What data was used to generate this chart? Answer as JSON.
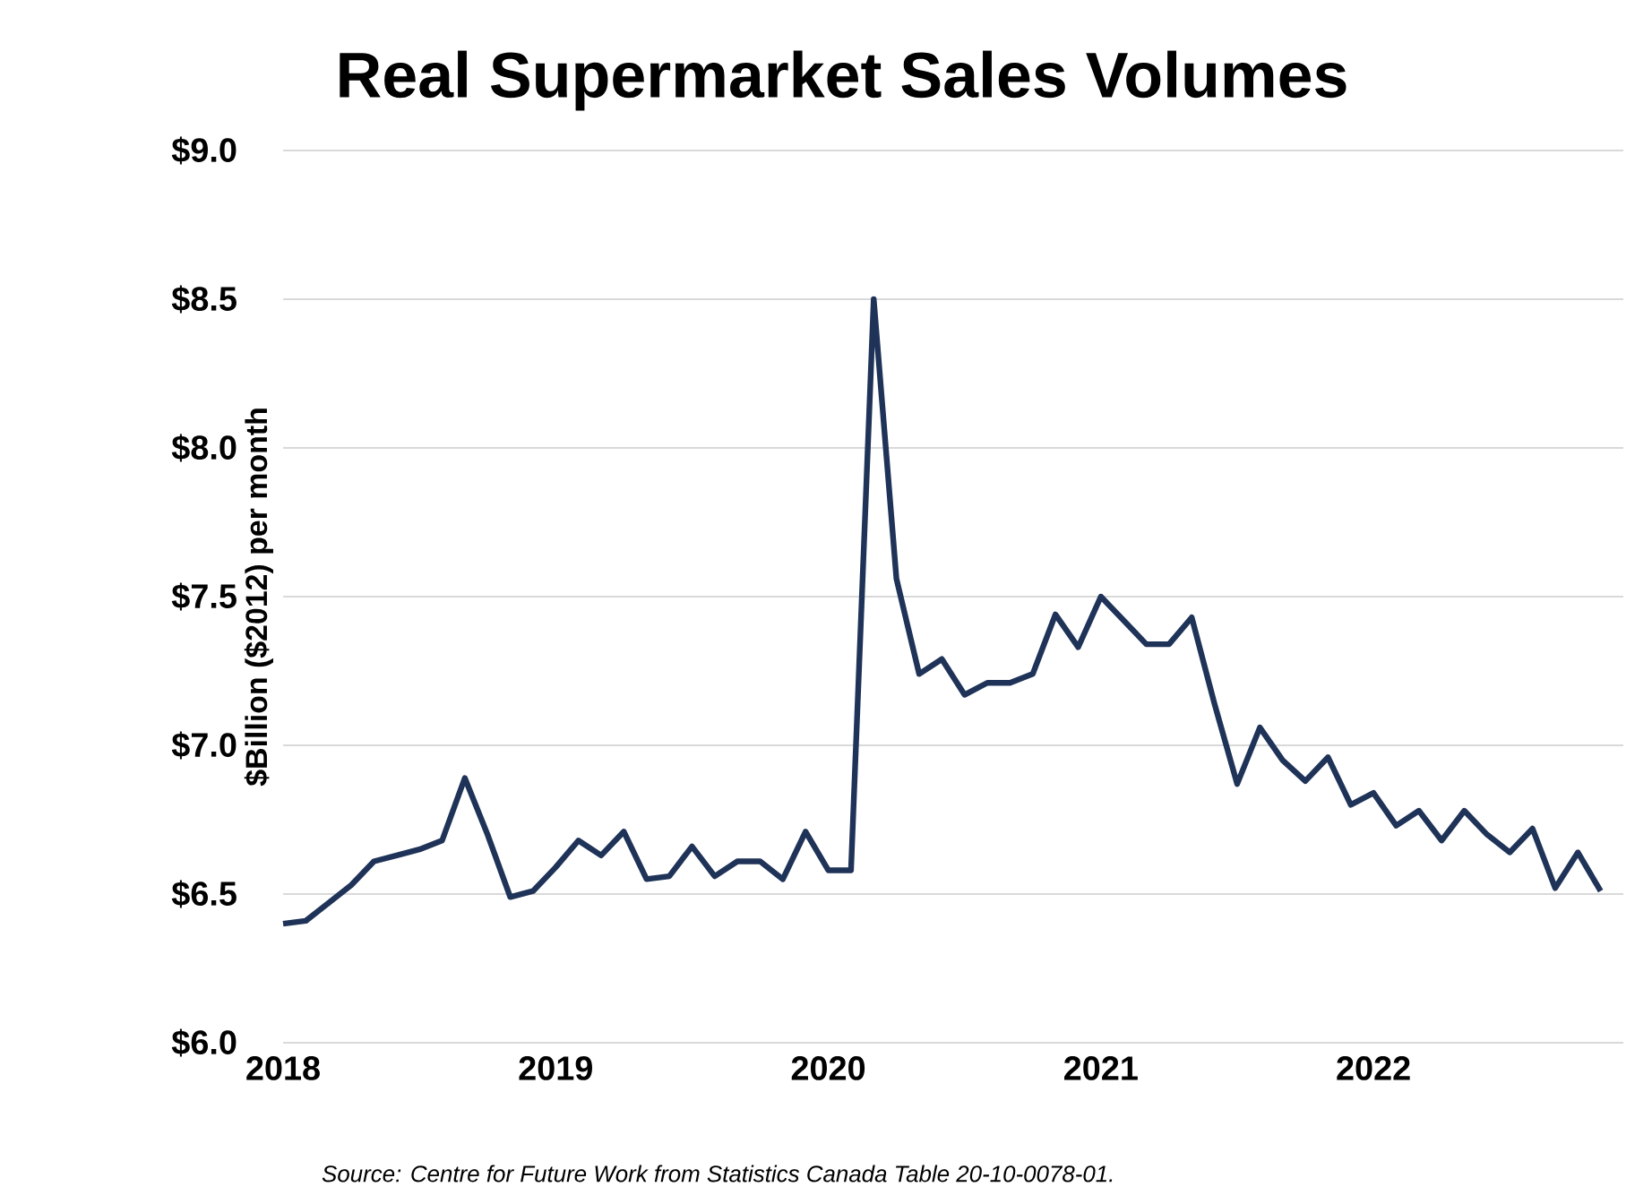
{
  "chart_data": {
    "type": "line",
    "title": "Real Supermarket Sales Volumes",
    "ylabel": "$Billion ($2012) per month",
    "annotations": [
      "Source: Centre for Future Work from Statistics Canada Table 20-10-0078-01."
    ],
    "x": [
      "2018-01",
      "2018-02",
      "2018-03",
      "2018-04",
      "2018-05",
      "2018-06",
      "2018-07",
      "2018-08",
      "2018-09",
      "2018-10",
      "2018-11",
      "2018-12",
      "2019-01",
      "2019-02",
      "2019-03",
      "2019-04",
      "2019-05",
      "2019-06",
      "2019-07",
      "2019-08",
      "2019-09",
      "2019-10",
      "2019-11",
      "2019-12",
      "2020-01",
      "2020-02",
      "2020-03",
      "2020-04",
      "2020-05",
      "2020-06",
      "2020-07",
      "2020-08",
      "2020-09",
      "2020-10",
      "2020-11",
      "2020-12",
      "2021-01",
      "2021-02",
      "2021-03",
      "2021-04",
      "2021-05",
      "2021-06",
      "2021-07",
      "2021-08",
      "2021-09",
      "2021-10",
      "2021-11",
      "2021-12",
      "2022-01",
      "2022-02",
      "2022-03",
      "2022-04",
      "2022-05",
      "2022-06",
      "2022-07",
      "2022-08",
      "2022-09",
      "2022-10",
      "2022-11"
    ],
    "series": [
      {
        "color": "#1f3358",
        "values": [
          6.4,
          6.41,
          6.47,
          6.53,
          6.61,
          6.63,
          6.65,
          6.68,
          6.89,
          6.7,
          6.49,
          6.51,
          6.59,
          6.68,
          6.63,
          6.71,
          6.55,
          6.56,
          6.66,
          6.56,
          6.61,
          6.61,
          6.55,
          6.71,
          6.58,
          6.58,
          8.5,
          7.56,
          7.24,
          7.29,
          7.17,
          7.21,
          7.21,
          7.24,
          7.44,
          7.33,
          7.5,
          7.42,
          7.34,
          7.34,
          7.43,
          7.14,
          6.87,
          7.06,
          6.95,
          6.88,
          6.96,
          6.8,
          6.84,
          6.73,
          6.78,
          6.68,
          6.78,
          6.7,
          6.64,
          6.72,
          6.52,
          6.64,
          6.51
        ]
      }
    ],
    "xlim": [
      "2018-01",
      "2022-12"
    ],
    "xticks": [
      {
        "value": "2018-01",
        "label": "2018"
      },
      {
        "value": "2019-01",
        "label": "2019"
      },
      {
        "value": "2020-01",
        "label": "2020"
      },
      {
        "value": "2021-01",
        "label": "2021"
      },
      {
        "value": "2022-01",
        "label": "2022"
      }
    ],
    "ylim": [
      6.0,
      9.0
    ],
    "yticks": [
      {
        "value": 6.0,
        "label": "$6.0"
      },
      {
        "value": 6.5,
        "label": "$6.5"
      },
      {
        "value": 7.0,
        "label": "$7.0"
      },
      {
        "value": 7.5,
        "label": "$7.5"
      },
      {
        "value": 8.0,
        "label": "$8.0"
      },
      {
        "value": 8.5,
        "label": "$8.5"
      },
      {
        "value": 9.0,
        "label": "$9.0"
      }
    ],
    "grid": "y",
    "line_style": "solid"
  }
}
